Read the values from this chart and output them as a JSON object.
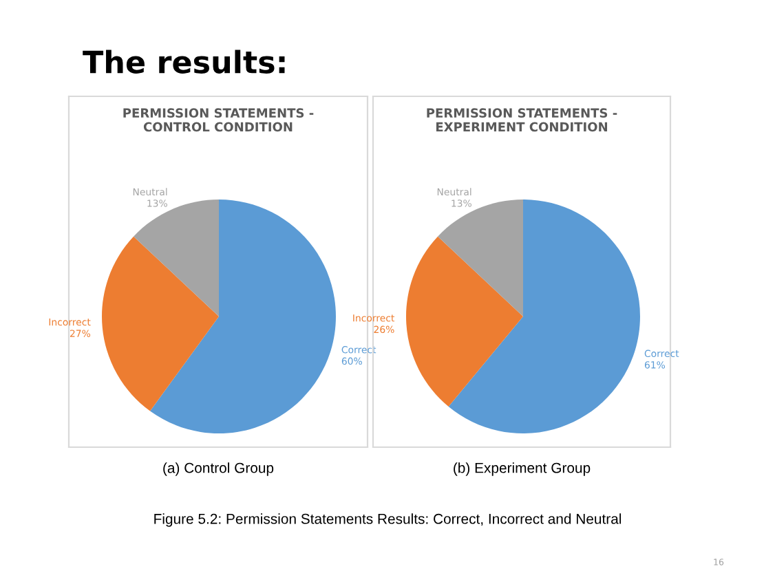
{
  "chart_data": [
    {
      "type": "pie",
      "title": "PERMISSION STATEMENTS -\nCONTROL CONDITION",
      "xlabel": "(a) Control Group",
      "categories": [
        "Correct",
        "Incorrect",
        "Neutral"
      ],
      "values": [
        60,
        27,
        13
      ],
      "value_labels": [
        "60%",
        "27%",
        "13%"
      ],
      "colors": [
        "#5b9bd5",
        "#ed7d31",
        "#a5a5a5"
      ],
      "legend": false,
      "annotations": [
        "The results:"
      ]
    },
    {
      "type": "pie",
      "title": "PERMISSION STATEMENTS -\nEXPERIMENT CONDITION",
      "xlabel": "(b) Experiment Group",
      "categories": [
        "Correct",
        "Incorrect",
        "Neutral"
      ],
      "values": [
        61,
        26,
        13
      ],
      "value_labels": [
        "61%",
        "26%",
        "13%"
      ],
      "colors": [
        "#5b9bd5",
        "#ed7d31",
        "#a5a5a5"
      ],
      "legend": false,
      "annotations": [
        "Figure 5.2: Permission Statements Results: Correct, Incorrect and Neutral",
        "16"
      ]
    }
  ]
}
